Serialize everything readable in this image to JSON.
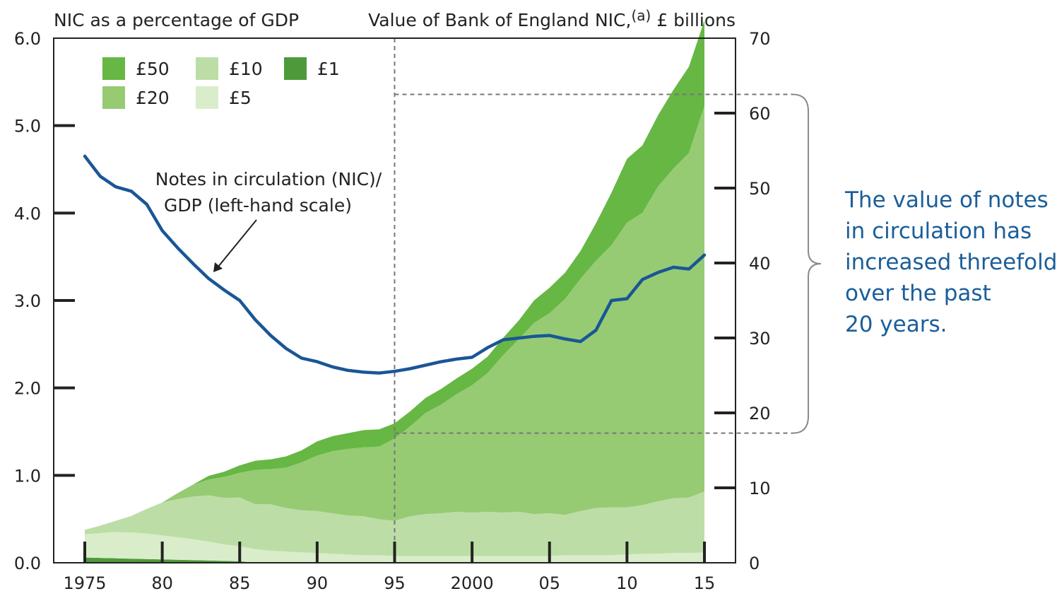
{
  "chart_data": {
    "type": "area",
    "left_axis_title": "NIC as a percentage of GDP",
    "right_axis_title": "Value of Bank of England NIC,",
    "right_axis_title_sup": "(a)",
    "right_axis_title_unit": "£ billions",
    "x": [
      1975,
      1976,
      1977,
      1978,
      1979,
      1980,
      1981,
      1982,
      1983,
      1984,
      1985,
      1986,
      1987,
      1988,
      1989,
      1990,
      1991,
      1992,
      1993,
      1994,
      1995,
      1996,
      1997,
      1998,
      1999,
      2000,
      2001,
      2002,
      2003,
      2004,
      2005,
      2006,
      2007,
      2008,
      2009,
      2010,
      2011,
      2012,
      2013,
      2014,
      2015
    ],
    "x_ticks": [
      1975,
      1980,
      1985,
      1990,
      1995,
      2000,
      2005,
      2010,
      2015
    ],
    "x_tick_labels": [
      "1975",
      "80",
      "85",
      "90",
      "95",
      "2000",
      "05",
      "10",
      "15"
    ],
    "y_left": {
      "range": [
        0,
        6
      ],
      "ticks": [
        0,
        1,
        2,
        3,
        4,
        5,
        6
      ],
      "tick_labels": [
        "0.0",
        "1.0",
        "2.0",
        "3.0",
        "4.0",
        "5.0",
        "6.0"
      ]
    },
    "y_right": {
      "range": [
        0,
        70
      ],
      "ticks": [
        0,
        10,
        20,
        30,
        40,
        50,
        60,
        70
      ],
      "tick_labels": [
        "0",
        "10",
        "20",
        "30",
        "40",
        "50",
        "60",
        "70"
      ]
    },
    "series": [
      {
        "name": "£1",
        "axis": "right",
        "color": "#4e9a3b",
        "values": [
          0.7,
          0.65,
          0.6,
          0.55,
          0.5,
          0.45,
          0.4,
          0.35,
          0.3,
          0.25,
          0.2,
          0,
          0,
          0,
          0,
          0,
          0,
          0,
          0,
          0,
          0,
          0,
          0,
          0,
          0,
          0,
          0,
          0,
          0,
          0,
          0,
          0,
          0,
          0,
          0,
          0,
          0,
          0,
          0,
          0,
          0
        ]
      },
      {
        "name": "£5",
        "axis": "right",
        "color": "#d9edcb",
        "values": [
          3.1,
          3.3,
          3.5,
          3.5,
          3.4,
          3.2,
          3.0,
          2.8,
          2.5,
          2.2,
          2.0,
          1.8,
          1.6,
          1.5,
          1.4,
          1.3,
          1.2,
          1.1,
          1.0,
          1.0,
          0.9,
          0.9,
          0.9,
          0.9,
          0.9,
          0.9,
          0.9,
          0.9,
          0.9,
          0.9,
          0.9,
          1.0,
          1.0,
          1.0,
          1.0,
          1.1,
          1.2,
          1.2,
          1.3,
          1.3,
          1.4
        ]
      },
      {
        "name": "£10",
        "axis": "right",
        "color": "#bcdea6",
        "values": [
          0.6,
          1.0,
          1.5,
          2.2,
          3.3,
          4.4,
          5.1,
          5.7,
          6.2,
          6.2,
          6.5,
          6.0,
          6.2,
          5.8,
          5.6,
          5.6,
          5.4,
          5.2,
          5.2,
          4.8,
          4.7,
          5.3,
          5.6,
          5.7,
          5.9,
          5.8,
          5.9,
          5.8,
          5.9,
          5.6,
          5.7,
          5.4,
          5.9,
          6.3,
          6.4,
          6.3,
          6.5,
          7.0,
          7.3,
          7.4,
          8.1
        ]
      },
      {
        "name": "£20",
        "axis": "right",
        "color": "#96cb74",
        "values": [
          0,
          0,
          0,
          0,
          0,
          0,
          0.8,
          1.6,
          2.1,
          2.8,
          3.3,
          4.6,
          4.7,
          5.4,
          6.4,
          7.4,
          8.3,
          8.9,
          9.2,
          9.7,
          11.0,
          12.0,
          13.5,
          14.5,
          15.7,
          17.0,
          18.5,
          21.0,
          23.0,
          25.5,
          26.7,
          28.8,
          31.0,
          33.0,
          35.0,
          38.0,
          39.0,
          42.0,
          44.0,
          46.0,
          51.5
        ]
      },
      {
        "name": "£50",
        "axis": "right",
        "color": "#66b744",
        "values": [
          0,
          0,
          0,
          0,
          0,
          0,
          0,
          0,
          0.5,
          0.7,
          1.0,
          1.2,
          1.3,
          1.5,
          1.6,
          1.9,
          2.0,
          2.1,
          2.3,
          2.3,
          2.0,
          2.0,
          2.0,
          2.1,
          2.1,
          2.2,
          2.2,
          2.3,
          2.5,
          3.0,
          3.4,
          3.5,
          3.7,
          5.0,
          7.0,
          8.5,
          9.0,
          9.5,
          10.5,
          11.5,
          11.4
        ]
      },
      {
        "name": "Notes in circulation (NIC)/GDP",
        "axis": "left",
        "kind": "line",
        "color": "#1a5696",
        "values": [
          4.65,
          4.42,
          4.3,
          4.25,
          4.1,
          3.8,
          3.6,
          3.42,
          3.25,
          3.12,
          3.0,
          2.78,
          2.6,
          2.45,
          2.34,
          2.3,
          2.24,
          2.2,
          2.18,
          2.17,
          2.19,
          2.22,
          2.26,
          2.3,
          2.33,
          2.35,
          2.46,
          2.55,
          2.57,
          2.59,
          2.6,
          2.56,
          2.53,
          2.66,
          3.0,
          3.02,
          3.24,
          3.32,
          3.38,
          3.36,
          3.52
        ]
      }
    ],
    "legend": {
      "placement": "top-left",
      "items": [
        {
          "label": "£50",
          "color": "#66b744"
        },
        {
          "label": "£10",
          "color": "#bcdea6"
        },
        {
          "label": "£1",
          "color": "#4e9a3b"
        },
        {
          "label": "£20",
          "color": "#96cb74"
        },
        {
          "label": "£5",
          "color": "#d9edcb"
        }
      ]
    },
    "line_label": [
      "Notes in circulation (NIC)/",
      "GDP (left-hand scale)"
    ],
    "reference_line_x": 1995,
    "bracket_range_right": [
      17.3,
      62.5
    ],
    "callout": [
      "The value of notes",
      "in circulation has",
      "increased threefold",
      "over the past",
      "20 years."
    ],
    "grid": false
  }
}
